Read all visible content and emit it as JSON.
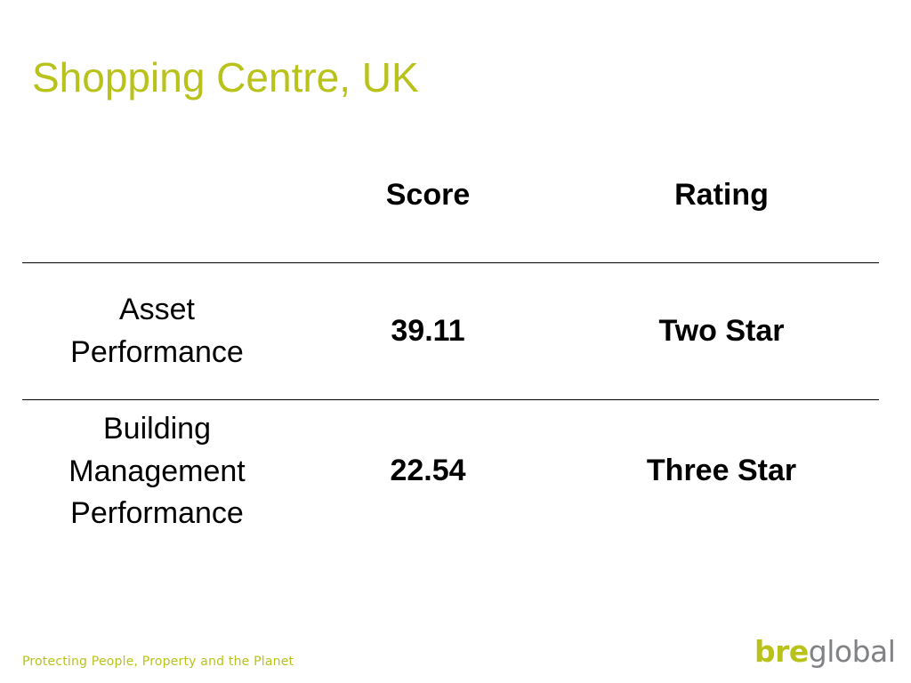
{
  "title": "Shopping Centre, UK",
  "table": {
    "headers": [
      "",
      "Score",
      "Rating"
    ],
    "rows": [
      {
        "label_lines": [
          "Asset",
          "Performance"
        ],
        "score": "39.11",
        "rating": "Two Star"
      },
      {
        "label_lines": [
          "Building",
          "Management",
          "Performance"
        ],
        "score": "22.54",
        "rating": "Three Star"
      }
    ]
  },
  "footer": {
    "tagline": "Protecting People, Property and the Planet",
    "logo": {
      "bre": "bre",
      "global": "global"
    }
  },
  "colors": {
    "accent": "#b9c21a",
    "logo_grey": "#808285",
    "text": "#000000",
    "background": "#ffffff"
  }
}
